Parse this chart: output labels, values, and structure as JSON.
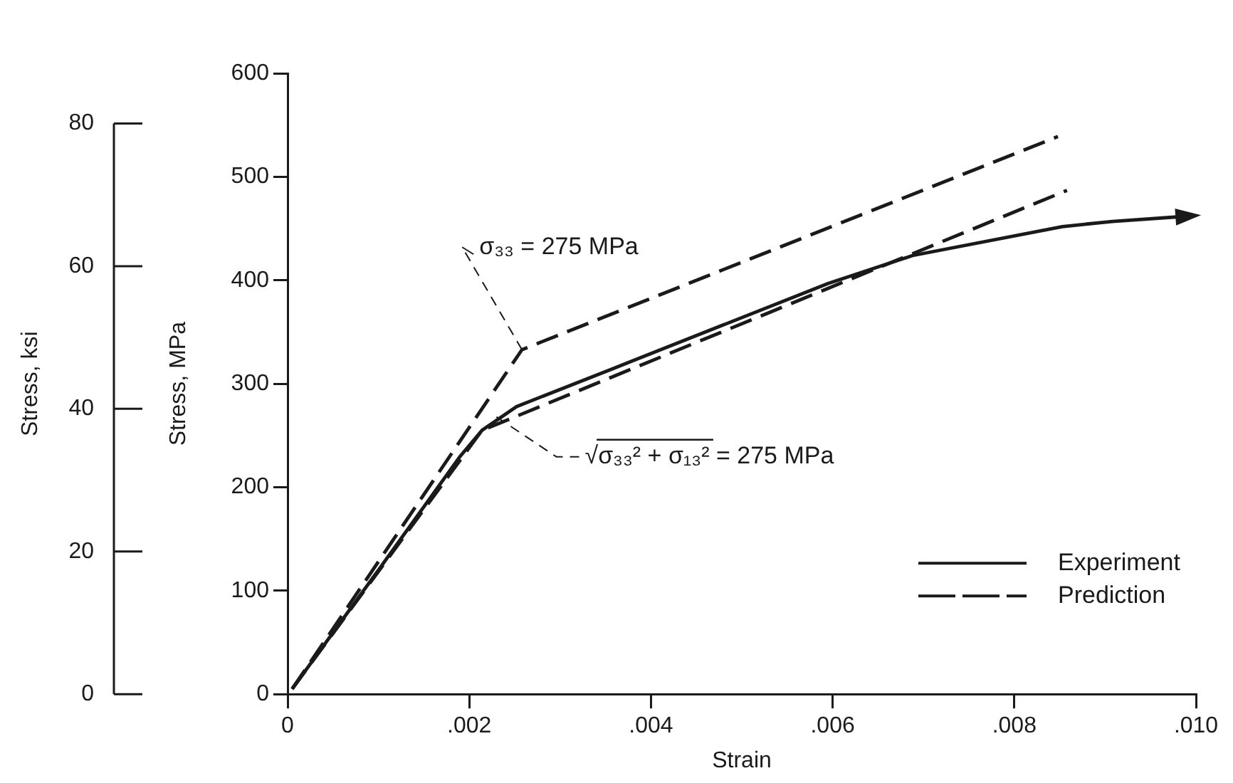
{
  "chart_data": {
    "type": "line",
    "xlabel": "Strain",
    "ylabel": "Stress, MPa",
    "y2label": "Stress, ksi",
    "xlim": [
      0,
      0.01
    ],
    "xticks": [
      0,
      {
        "value": 0.002,
        "label": ".002"
      },
      {
        "value": 0.004,
        "label": ".004"
      },
      {
        "value": 0.006,
        "label": ".006"
      },
      {
        "value": 0.008,
        "label": ".008"
      },
      {
        "value": 0.01,
        "label": ".010"
      }
    ],
    "ylim": [
      0,
      600
    ],
    "yticks": [
      0,
      100,
      200,
      300,
      400,
      500,
      600
    ],
    "y2lim": [
      0,
      87.02
    ],
    "y2ticks": [
      0,
      20,
      40,
      60,
      80
    ],
    "grid": false,
    "legend": "bottom right",
    "marker": "none",
    "series": [
      {
        "name": "Experiment",
        "color": "#1a1a1a",
        "line_style": "solid",
        "x": [
          5e-05,
          0.001,
          0.0019,
          0.00214,
          0.00252,
          0.00359,
          0.00595,
          0.00688,
          0.00853,
          0.00908,
          0.0099
        ],
        "values": [
          5,
          120,
          230,
          255,
          278,
          315,
          397,
          424,
          452,
          457,
          462
        ]
      },
      {
        "name": "Prediction",
        "color": "#1a1a1a",
        "line_style": "dashed",
        "x": [
          5e-05,
          0.00258,
          0.00848
        ],
        "values": [
          5,
          333,
          539
        ]
      },
      {
        "color": "#1a1a1a",
        "line_style": "dashed",
        "x": [
          5e-05,
          0.00214,
          0.00858
        ],
        "values": [
          5,
          255,
          487
        ]
      }
    ],
    "annotations": [
      {
        "text": "σ₃₃ = 275 MPa",
        "x": 0.00258,
        "y": 333
      },
      {
        "text": "√σ₃₃² + σ₁₃² = 275 MPa",
        "x": 0.0023,
        "y": 268
      }
    ]
  }
}
